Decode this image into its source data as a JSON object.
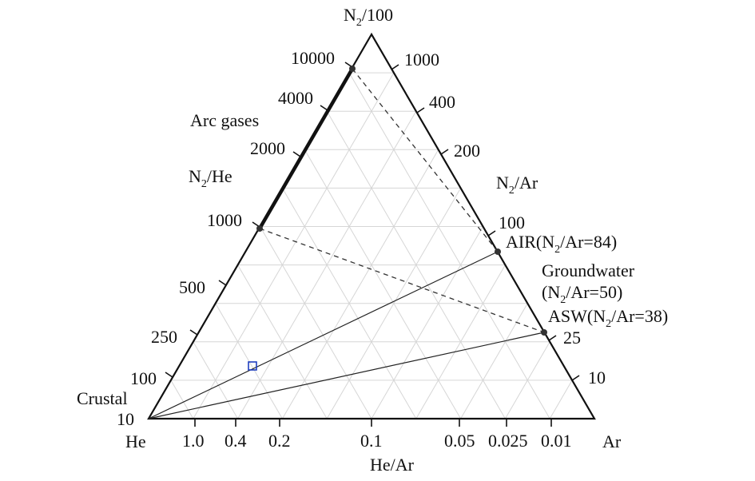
{
  "diagram": {
    "apex_label": "N",
    "apex_sub": "2",
    "apex_suffix": "/100",
    "left_vertex_label": "He",
    "right_vertex_label": "Ar",
    "left_axis_title": {
      "main": "N",
      "sub": "2",
      "suffix": "/He"
    },
    "right_axis_title": {
      "main": "N",
      "sub": "2",
      "suffix": "/Ar"
    },
    "bottom_axis_title": "He/Ar",
    "left_ticks": [
      "10000",
      "4000",
      "2000",
      "1000",
      "500",
      "250",
      "100",
      "10"
    ],
    "right_ticks": [
      "1000",
      "400",
      "200",
      "100",
      "25",
      "10"
    ],
    "bottom_ticks": [
      "1.0",
      "0.4",
      "0.2",
      "0.1",
      "0.05",
      "0.025",
      "0.01"
    ],
    "arc_gases_label": "Arc gases",
    "crustal_label": "Crustal",
    "air_label": {
      "pre": "AIR(N",
      "sub": "2",
      "post": "/Ar=84)"
    },
    "groundwater_label": "Groundwater",
    "groundwater_value": {
      "pre": "(N",
      "sub": "2",
      "post": "/Ar=50)"
    },
    "asw_label": {
      "pre": "ASW(N",
      "sub": "2",
      "post": "/Ar=38)"
    },
    "colors": {
      "frame": "#111111",
      "grid": "#d6d6d6",
      "marker": "#1f3fbf",
      "point": "#333333"
    }
  }
}
